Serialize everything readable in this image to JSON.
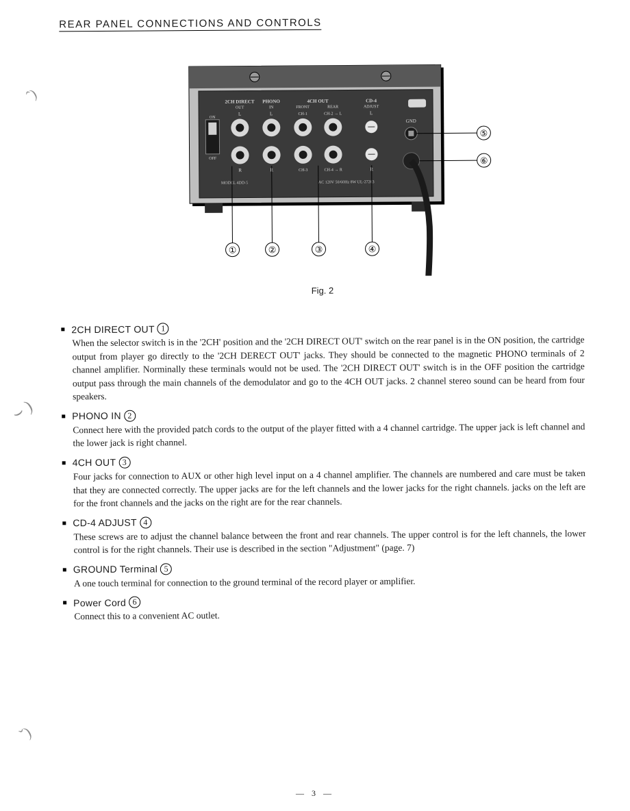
{
  "title": "REAR PANEL CONNECTIONS AND CONTROLS",
  "figure": {
    "caption": "Fig. 2",
    "panel_fill": "#3a3a3a",
    "panel_stroke": "#000000",
    "jack_outer": "#d8d8d8",
    "jack_inner": "#1a1a1a",
    "panel_labels": {
      "direct": "2CH DIRECT",
      "out": "OUT",
      "phono": "PHONO",
      "in": "IN",
      "ch4out": "4CH OUT",
      "front": "FRONT",
      "rear": "REAR",
      "ch1": "CH-1",
      "ch2": "CH-2 → L",
      "ch3": "CH-3",
      "ch4": "CH-4 → R",
      "cd4": "CD-4",
      "adjust": "ADJUST",
      "on": "ON",
      "off": "OFF",
      "gnd": "GND",
      "lr_l": "L",
      "lr_r": "R",
      "model": "MODEL 4DD-5",
      "ac": "AC 120V 50/60Hz 8W  UL-27283"
    },
    "callouts": [
      "①",
      "②",
      "③",
      "④",
      "⑤",
      "⑥"
    ]
  },
  "sections": [
    {
      "title": "2CH DIRECT OUT",
      "num": "1",
      "body": "When the selector switch is in the '2CH' position and the '2CH DIRECT OUT' switch on the rear panel is in the ON position, the cartridge output from player go directly to the '2CH DERECT OUT' jacks. They should be connected to the magnetic PHONO terminals of 2 channel amplifier. Norminally these terminals would not be used. The '2CH DIRECT OUT' switch is in the OFF position the cartridge output pass through the main channels of the demodulator and go to the 4CH OUT jacks. 2 channel stereo sound can be heard from four speakers."
    },
    {
      "title": "PHONO IN",
      "num": "2",
      "body": "Connect here with the provided patch cords to the output of the player fitted with a 4 channel cartridge. The upper jack is left channel and the lower jack is right channel."
    },
    {
      "title": "4CH OUT",
      "num": "3",
      "body": "Four jacks for connection to AUX or other high level input on a 4 channel amplifier. The channels are numbered and care must be taken that they are connected correctly. The upper jacks are for the left channels and the lower jacks for the right channels. jacks on the left are for the front channels and the jacks on the right are for the rear channels."
    },
    {
      "title": "CD-4 ADJUST",
      "num": "4",
      "body": "These screws are to adjust the channel balance between the front and rear channels. The upper control is for the left channels, the lower control is for the right channels. Their use is described in the section \"Adjustment\" (page. 7)"
    },
    {
      "title": "GROUND Terminal",
      "num": "5",
      "body": "A one touch terminal for connection to the ground terminal of the record player or amplifier."
    },
    {
      "title": "Power Cord",
      "num": "6",
      "body": "Connect this to a convenient AC outlet."
    }
  ],
  "page_number": "— 3 —"
}
